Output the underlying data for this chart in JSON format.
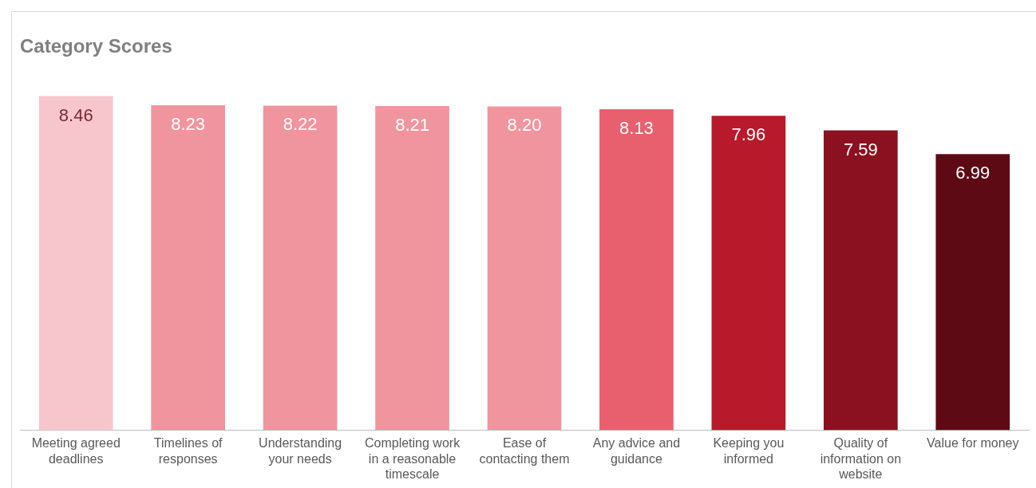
{
  "chart_data": {
    "type": "bar",
    "title": "Category Scores",
    "categories": [
      "Meeting agreed deadlines",
      "Timelines of responses",
      "Understanding your needs",
      "Completing work in a reasonable timescale",
      "Ease of contacting them",
      "Any advice and guidance",
      "Keeping you informed",
      "Quality of information on website",
      "Value for money"
    ],
    "values": [
      8.46,
      8.23,
      8.22,
      8.21,
      8.2,
      8.13,
      7.96,
      7.59,
      6.99
    ],
    "value_labels": [
      "8.46",
      "8.23",
      "8.22",
      "8.21",
      "8.20",
      "8.13",
      "7.96",
      "7.59",
      "6.99"
    ],
    "colors": [
      "#f7c6cc",
      "#f0959e",
      "#f0959e",
      "#f0959e",
      "#f0959e",
      "#e85f6e",
      "#b8192b",
      "#8b1120",
      "#5e0a14"
    ],
    "grid": false,
    "legend": false
  }
}
